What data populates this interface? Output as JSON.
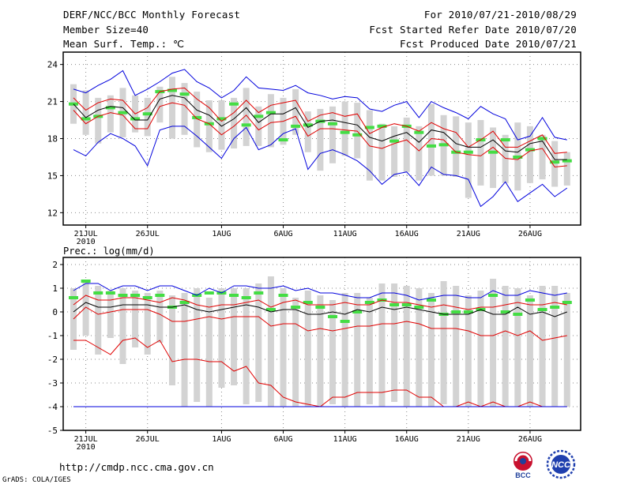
{
  "header": {
    "title": "DERF/NCC/BCC Monthly Forecast",
    "member_size": "Member Size=40",
    "top_variable": "Mean Surf. Temp.: ℃",
    "period": "For 2010/07/21-2010/08/29",
    "fcst_started": "Fcst Started Refer Date 2010/07/20",
    "fcst_produced": "Fcst Produced Date 2010/07/21"
  },
  "footer": {
    "url": "http://cmdp.ncc.cma.gov.cn",
    "credit": "GrADS: COLA/IGES",
    "logo_left_text": "BCC",
    "logo_right_text": "NCC"
  },
  "colors": {
    "box": "#d3d3d3",
    "green": "#44dd44",
    "ensemble_mean": "#000000",
    "percentile": "#e00000",
    "extreme": "#0000dd"
  },
  "chart_data": [
    {
      "type": "line",
      "title": "Mean Surf. Temp.: ℃",
      "ylim": [
        11,
        25
      ],
      "yticks": [
        12,
        15,
        18,
        21,
        24
      ],
      "xtick_labels": [
        "21JUL\n2010",
        "26JUL",
        "1AUG",
        "6AUG",
        "11AUG",
        "16AUG",
        "21AUG",
        "26AUG"
      ],
      "xtick_days": [
        1,
        6,
        12,
        17,
        22,
        27,
        32,
        37
      ],
      "days": 40,
      "series": [
        {
          "name": "max",
          "values": [
            22.0,
            21.7,
            22.3,
            22.8,
            23.5,
            21.5,
            22.0,
            22.6,
            23.3,
            23.6,
            22.6,
            22.1,
            21.3,
            21.9,
            23.0,
            22.1,
            22.0,
            21.9,
            22.3,
            21.7,
            21.5,
            21.2,
            21.4,
            21.3,
            20.4,
            20.2,
            20.7,
            21.0,
            19.7,
            21.0,
            20.5,
            20.1,
            19.6,
            20.6,
            20.0,
            19.6,
            17.9,
            18.2,
            19.7,
            18.1,
            17.9
          ]
        },
        {
          "name": "p90",
          "values": [
            21.3,
            20.3,
            20.9,
            21.2,
            21.1,
            20.0,
            20.5,
            21.8,
            22.0,
            22.1,
            21.2,
            20.5,
            19.4,
            20.1,
            21.1,
            20.1,
            20.7,
            20.9,
            21.1,
            19.4,
            19.9,
            20.1,
            19.8,
            20.0,
            18.4,
            18.9,
            19.2,
            19.0,
            18.6,
            19.3,
            18.8,
            18.5,
            17.3,
            17.9,
            18.6,
            17.3,
            17.3,
            17.8,
            18.3,
            16.8,
            16.9
          ]
        },
        {
          "name": "mean",
          "values": [
            20.8,
            19.7,
            20.3,
            20.6,
            20.5,
            19.5,
            19.5,
            21.2,
            21.5,
            21.3,
            20.3,
            19.9,
            19.0,
            19.6,
            20.5,
            19.3,
            20.0,
            20.0,
            20.5,
            18.9,
            19.4,
            19.5,
            19.3,
            19.1,
            18.1,
            17.8,
            18.2,
            18.5,
            17.7,
            18.7,
            18.5,
            17.6,
            17.3,
            17.3,
            17.9,
            17.0,
            16.9,
            17.6,
            17.8,
            16.3,
            16.3
          ]
        },
        {
          "name": "p10",
          "values": [
            20.3,
            19.2,
            19.8,
            20.1,
            19.9,
            18.8,
            18.8,
            20.6,
            20.9,
            20.7,
            19.6,
            19.2,
            18.3,
            19.0,
            19.9,
            18.7,
            19.3,
            19.4,
            19.8,
            18.2,
            18.8,
            18.8,
            18.7,
            18.6,
            17.4,
            17.2,
            17.6,
            17.9,
            17.0,
            18.0,
            17.9,
            16.9,
            16.7,
            16.6,
            17.3,
            16.4,
            16.3,
            17.0,
            17.2,
            15.7,
            15.8
          ]
        },
        {
          "name": "min",
          "values": [
            17.1,
            16.6,
            17.7,
            18.4,
            18.0,
            17.4,
            15.8,
            18.7,
            19.0,
            19.0,
            18.2,
            17.3,
            16.4,
            18.0,
            18.9,
            17.1,
            17.5,
            18.4,
            18.8,
            15.5,
            16.8,
            17.1,
            16.7,
            16.2,
            15.4,
            14.3,
            15.1,
            15.3,
            14.2,
            15.7,
            15.1,
            15.0,
            14.7,
            12.5,
            13.3,
            14.5,
            12.9,
            13.6,
            14.3,
            13.3,
            14.0
          ]
        },
        {
          "name": "observed_ref",
          "values": [
            20.8,
            19.6,
            19.8,
            20.5,
            20.1,
            19.6,
            20.0,
            21.8,
            21.9,
            21.6,
            19.7,
            19.2,
            19.6,
            20.8,
            19.1,
            19.8,
            20.1,
            17.9,
            19.0,
            19.1,
            19.4,
            19.2,
            18.5,
            18.3,
            18.9,
            19.0,
            17.8,
            19.0,
            18.5,
            17.4,
            17.5,
            16.9,
            16.9,
            17.9,
            16.9,
            17.9,
            16.5,
            17.1,
            18.0,
            16.1,
            16.2
          ]
        }
      ],
      "box_ranges": [
        [
          19.2,
          22.4
        ],
        [
          18.3,
          21.9
        ],
        [
          17.6,
          21.3
        ],
        [
          18.5,
          21.5
        ],
        [
          18.1,
          22.1
        ],
        [
          18.5,
          21.5
        ],
        [
          18.2,
          21.3
        ],
        [
          19.3,
          22.2
        ],
        [
          18.0,
          23.0
        ],
        [
          18.3,
          22.5
        ],
        [
          17.3,
          21.8
        ],
        [
          16.9,
          21.1
        ],
        [
          17.1,
          21.1
        ],
        [
          17.2,
          21.3
        ],
        [
          17.4,
          22.1
        ],
        [
          17.4,
          20.6
        ],
        [
          17.3,
          21.6
        ],
        [
          17.5,
          21.3
        ],
        [
          18.3,
          22.0
        ],
        [
          16.9,
          20.2
        ],
        [
          15.4,
          20.4
        ],
        [
          16.0,
          20.6
        ],
        [
          16.6,
          21.0
        ],
        [
          16.4,
          20.9
        ],
        [
          14.6,
          20.3
        ],
        [
          14.6,
          19.2
        ],
        [
          14.9,
          19.0
        ],
        [
          15.3,
          19.7
        ],
        [
          14.6,
          19.0
        ],
        [
          15.0,
          20.8
        ],
        [
          15.0,
          19.9
        ],
        [
          14.9,
          19.8
        ],
        [
          13.2,
          19.3
        ],
        [
          14.2,
          19.5
        ],
        [
          14.0,
          18.9
        ],
        [
          14.4,
          18.3
        ],
        [
          13.8,
          19.3
        ],
        [
          14.4,
          19.0
        ],
        [
          14.7,
          18.3
        ],
        [
          14.1,
          17.8
        ],
        [
          14.2,
          16.9
        ]
      ]
    },
    {
      "type": "line",
      "title": "Prec.: log(mm/d)",
      "ylim": [
        -5,
        2.3
      ],
      "yticks": [
        -5,
        -4,
        -3,
        -2,
        -1,
        0,
        1,
        2
      ],
      "xtick_labels": [
        "21JUL\n2010",
        "26JUL",
        "1AUG",
        "6AUG",
        "11AUG",
        "16AUG",
        "21AUG",
        "26AUG"
      ],
      "xtick_days": [
        1,
        6,
        12,
        17,
        22,
        27,
        32,
        37
      ],
      "days": 40,
      "series": [
        {
          "name": "max",
          "values": [
            0.9,
            1.2,
            1.2,
            0.9,
            1.1,
            1.1,
            0.9,
            1.1,
            1.1,
            0.9,
            0.7,
            1.0,
            0.8,
            1.1,
            1.1,
            1.0,
            1.0,
            1.1,
            0.9,
            1.0,
            0.8,
            0.8,
            0.7,
            0.6,
            0.6,
            0.8,
            0.8,
            0.7,
            0.5,
            0.6,
            0.7,
            0.7,
            0.6,
            0.6,
            0.9,
            0.7,
            0.7,
            0.9,
            0.8,
            0.7,
            0.8
          ]
        },
        {
          "name": "p90",
          "values": [
            0.3,
            0.7,
            0.5,
            0.5,
            0.6,
            0.6,
            0.5,
            0.4,
            0.6,
            0.5,
            0.3,
            0.2,
            0.3,
            0.3,
            0.4,
            0.5,
            0.2,
            0.4,
            0.5,
            0.3,
            0.3,
            0.3,
            0.4,
            0.3,
            0.3,
            0.5,
            0.4,
            0.4,
            0.3,
            0.2,
            0.3,
            0.2,
            0.1,
            0.2,
            0.2,
            0.3,
            0.4,
            0.3,
            0.3,
            0.4,
            0.3
          ]
        },
        {
          "name": "mean",
          "values": [
            0.0,
            0.4,
            0.2,
            0.2,
            0.3,
            0.3,
            0.3,
            0.2,
            0.2,
            0.3,
            0.1,
            0.0,
            0.1,
            0.2,
            0.3,
            0.2,
            0.0,
            0.1,
            0.1,
            -0.1,
            -0.1,
            0.0,
            -0.1,
            0.1,
            0.0,
            0.2,
            0.1,
            0.2,
            0.1,
            0.0,
            -0.1,
            -0.1,
            -0.1,
            0.1,
            -0.1,
            -0.1,
            0.2,
            -0.1,
            0.0,
            -0.2,
            0.0
          ]
        },
        {
          "name": "p10",
          "values": [
            -0.3,
            0.2,
            -0.1,
            0.0,
            0.1,
            0.1,
            0.1,
            -0.1,
            -0.4,
            -0.4,
            -0.3,
            -0.2,
            -0.3,
            -0.2,
            -0.2,
            -0.2,
            -0.6,
            -0.5,
            -0.5,
            -0.8,
            -0.7,
            -0.8,
            -0.7,
            -0.6,
            -0.6,
            -0.5,
            -0.5,
            -0.4,
            -0.5,
            -0.7,
            -0.7,
            -0.7,
            -0.8,
            -1.0,
            -1.0,
            -0.8,
            -1.0,
            -0.8,
            -1.2,
            -1.1,
            -1.0
          ]
        },
        {
          "name": "p_low",
          "values": [
            -1.2,
            -1.2,
            -1.5,
            -1.8,
            -1.2,
            -1.1,
            -1.5,
            -1.2,
            -2.1,
            -2.0,
            -2.0,
            -2.1,
            -2.1,
            -2.5,
            -2.3,
            -3.0,
            -3.1,
            -3.6,
            -3.8,
            -3.9,
            -4.0,
            -3.6,
            -3.6,
            -3.4,
            -3.4,
            -3.4,
            -3.3,
            -3.3,
            -3.6,
            -3.6,
            -4.0,
            -4.0,
            -3.8,
            -4.0,
            -3.8,
            -4.0,
            -4.0,
            -3.8,
            -4.0,
            -4.0,
            -4.0
          ]
        },
        {
          "name": "min",
          "values": [
            -4.0,
            -4.0,
            -4.0,
            -4.0,
            -4.0,
            -4.0,
            -4.0,
            -4.0,
            -4.0,
            -4.0,
            -4.0,
            -4.0,
            -4.0,
            -4.0,
            -4.0,
            -4.0,
            -4.0,
            -4.0,
            -4.0,
            -4.0,
            -4.0,
            -4.0,
            -4.0,
            -4.0,
            -4.0,
            -4.0,
            -4.0,
            -4.0,
            -4.0,
            -4.0,
            -4.0,
            -4.0,
            -4.0,
            -4.0,
            -4.0,
            -4.0,
            -4.0,
            -4.0,
            -4.0,
            -4.0,
            -4.0
          ]
        },
        {
          "name": "observed_ref",
          "values": [
            0.6,
            1.3,
            0.8,
            0.8,
            0.7,
            0.7,
            0.6,
            0.7,
            0.2,
            0.4,
            0.7,
            0.8,
            0.8,
            0.7,
            0.6,
            0.8,
            0.1,
            0.7,
            0.2,
            0.4,
            0.2,
            -0.2,
            -0.4,
            0.0,
            0.4,
            0.5,
            0.3,
            0.3,
            0.2,
            0.5,
            -0.1,
            0.0,
            0.0,
            0.1,
            0.7,
            0.0,
            -0.1,
            0.5,
            0.1,
            0.2,
            0.4
          ]
        }
      ],
      "box_ranges": [
        [
          -1.6,
          1.0
        ],
        [
          -1.0,
          1.3
        ],
        [
          -1.8,
          1.1
        ],
        [
          -1.1,
          0.9
        ],
        [
          -2.2,
          1.0
        ],
        [
          -1.5,
          0.9
        ],
        [
          -1.8,
          0.8
        ],
        [
          -1.3,
          0.9
        ],
        [
          -3.1,
          0.7
        ],
        [
          -4.0,
          0.8
        ],
        [
          -3.8,
          1.0
        ],
        [
          -4.0,
          0.6
        ],
        [
          -3.2,
          1.0
        ],
        [
          -3.1,
          1.0
        ],
        [
          -3.9,
          1.0
        ],
        [
          -3.8,
          1.2
        ],
        [
          -4.0,
          1.5
        ],
        [
          -4.0,
          1.0
        ],
        [
          -4.0,
          0.6
        ],
        [
          -4.0,
          0.9
        ],
        [
          -4.0,
          0.7
        ],
        [
          -3.9,
          0.5
        ],
        [
          -4.0,
          0.8
        ],
        [
          -4.0,
          0.8
        ],
        [
          -3.9,
          0.6
        ],
        [
          -4.0,
          1.2
        ],
        [
          -3.8,
          1.2
        ],
        [
          -4.0,
          1.1
        ],
        [
          -4.0,
          1.0
        ],
        [
          -4.0,
          0.8
        ],
        [
          -3.9,
          1.3
        ],
        [
          -4.0,
          1.1
        ],
        [
          -4.0,
          0.7
        ],
        [
          -4.0,
          0.9
        ],
        [
          -4.0,
          1.4
        ],
        [
          -4.0,
          1.1
        ],
        [
          -4.0,
          1.0
        ],
        [
          -4.0,
          0.7
        ],
        [
          -4.0,
          1.1
        ],
        [
          -4.0,
          1.1
        ],
        [
          -4.0,
          0.8
        ]
      ]
    }
  ],
  "bottom_panel_label": "Prec.: log(mm/d)"
}
